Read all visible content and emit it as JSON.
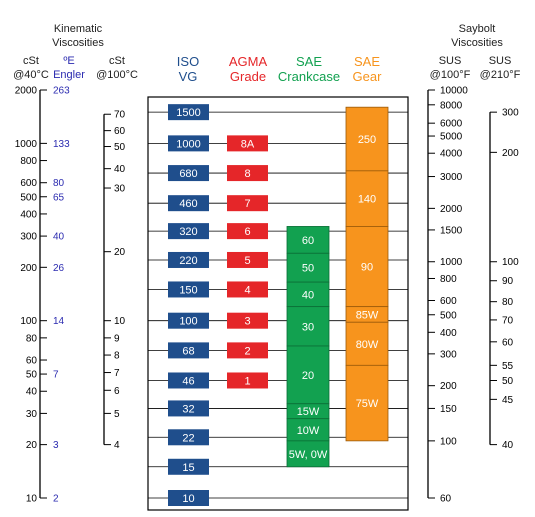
{
  "headers": {
    "kinematic_title": [
      "Kinematic",
      "Viscosities"
    ],
    "saybolt_title": [
      "Saybolt",
      "Viscosities"
    ],
    "cst40": [
      "cSt",
      "@40°C"
    ],
    "engler": [
      "ºE",
      "Engler"
    ],
    "cst100": [
      "cSt",
      "@100°C"
    ],
    "iso": [
      "ISO",
      "VG"
    ],
    "agma": [
      "AGMA",
      "Grade"
    ],
    "sae_crankcase": [
      "SAE",
      "Crankcase"
    ],
    "sae_gear": [
      "SAE",
      "Gear"
    ],
    "sus100": [
      "SUS",
      "@100°F"
    ],
    "sus210": [
      "SUS",
      "@210°F"
    ]
  },
  "colors": {
    "iso": "#1f4e8c",
    "agma": "#e52629",
    "crankcase": "#12a150",
    "gear": "#f7941d",
    "iso_header": "#1f4e8c",
    "agma_header": "#e52629",
    "crankcase_header": "#12a150",
    "gear_header": "#f7941d",
    "engler_text": "#2b2bb0"
  },
  "chart_data": {
    "type": "viscosity-comparison",
    "base_scale": "cSt @40°C (log)",
    "cst40_ticks": [
      {
        "v": 2000,
        "label": "2000"
      },
      {
        "v": 1000,
        "label": "1000"
      },
      {
        "v": 800,
        "label": "800"
      },
      {
        "v": 600,
        "label": "600"
      },
      {
        "v": 500,
        "label": "500"
      },
      {
        "v": 400,
        "label": "400"
      },
      {
        "v": 300,
        "label": "300"
      },
      {
        "v": 200,
        "label": "200"
      },
      {
        "v": 100,
        "label": "100"
      },
      {
        "v": 80,
        "label": "80"
      },
      {
        "v": 60,
        "label": "60"
      },
      {
        "v": 50,
        "label": "50"
      },
      {
        "v": 40,
        "label": "40"
      },
      {
        "v": 30,
        "label": "30"
      },
      {
        "v": 20,
        "label": "20"
      },
      {
        "v": 10,
        "label": "10"
      }
    ],
    "engler_ticks": [
      {
        "v": 2000,
        "label": "263"
      },
      {
        "v": 1000,
        "label": "133"
      },
      {
        "v": 600,
        "label": "80"
      },
      {
        "v": 500,
        "label": "65"
      },
      {
        "v": 300,
        "label": "40"
      },
      {
        "v": 200,
        "label": "26"
      },
      {
        "v": 100,
        "label": "14"
      },
      {
        "v": 50,
        "label": "7"
      },
      {
        "v": 20,
        "label": "3"
      },
      {
        "v": 10,
        "label": "2"
      }
    ],
    "cst100_ticks": [
      {
        "at": 1460,
        "label": "70"
      },
      {
        "at": 1180,
        "label": "60"
      },
      {
        "at": 960,
        "label": "50"
      },
      {
        "at": 720,
        "label": "40"
      },
      {
        "at": 560,
        "label": "30"
      },
      {
        "at": 245,
        "label": "20"
      },
      {
        "at": 100,
        "label": "10"
      },
      {
        "at": 80,
        "label": "9"
      },
      {
        "at": 64,
        "label": "8"
      },
      {
        "at": 51,
        "label": "7"
      },
      {
        "at": 40.5,
        "label": "6"
      },
      {
        "at": 30,
        "label": "5"
      },
      {
        "at": 20,
        "label": "4"
      }
    ],
    "sus100_ticks": [
      {
        "at": 2000,
        "label": "10000"
      },
      {
        "at": 1650,
        "label": "8000"
      },
      {
        "at": 1300,
        "label": "6000"
      },
      {
        "at": 1100,
        "label": "5000"
      },
      {
        "at": 880,
        "label": "4000"
      },
      {
        "at": 650,
        "label": "3000"
      },
      {
        "at": 430,
        "label": "2000"
      },
      {
        "at": 325,
        "label": "1500"
      },
      {
        "at": 215,
        "label": "1000"
      },
      {
        "at": 173,
        "label": "800"
      },
      {
        "at": 130,
        "label": "600"
      },
      {
        "at": 108,
        "label": "500"
      },
      {
        "at": 86,
        "label": "400"
      },
      {
        "at": 65,
        "label": "300"
      },
      {
        "at": 43,
        "label": "200"
      },
      {
        "at": 32,
        "label": "150"
      },
      {
        "at": 21,
        "label": "100"
      },
      {
        "at": 10,
        "label": "60"
      }
    ],
    "sus210_ticks": [
      {
        "at": 1500,
        "label": "300"
      },
      {
        "at": 890,
        "label": "200"
      },
      {
        "at": 215,
        "label": "100"
      },
      {
        "at": 168,
        "label": "90"
      },
      {
        "at": 128,
        "label": "80"
      },
      {
        "at": 101,
        "label": "70"
      },
      {
        "at": 76,
        "label": "60"
      },
      {
        "at": 56,
        "label": "55"
      },
      {
        "at": 46,
        "label": "50"
      },
      {
        "at": 36,
        "label": "45"
      },
      {
        "at": 20,
        "label": "40"
      }
    ],
    "iso_vg": [
      {
        "label": "1500",
        "v": 1500
      },
      {
        "label": "1000",
        "v": 1000
      },
      {
        "label": "680",
        "v": 680
      },
      {
        "label": "460",
        "v": 460
      },
      {
        "label": "320",
        "v": 320
      },
      {
        "label": "220",
        "v": 220
      },
      {
        "label": "150",
        "v": 150
      },
      {
        "label": "100",
        "v": 100
      },
      {
        "label": "68",
        "v": 68
      },
      {
        "label": "46",
        "v": 46
      },
      {
        "label": "32",
        "v": 32
      },
      {
        "label": "22",
        "v": 22
      },
      {
        "label": "15",
        "v": 15
      },
      {
        "label": "10",
        "v": 10
      }
    ],
    "agma_grades": [
      {
        "label": "8A",
        "v": 1000
      },
      {
        "label": "8",
        "v": 680
      },
      {
        "label": "7",
        "v": 460
      },
      {
        "label": "6",
        "v": 320
      },
      {
        "label": "5",
        "v": 220
      },
      {
        "label": "4",
        "v": 150
      },
      {
        "label": "3",
        "v": 100
      },
      {
        "label": "2",
        "v": 68
      },
      {
        "label": "1",
        "v": 46
      }
    ],
    "sae_crankcase": [
      {
        "label": "60",
        "from": 240,
        "to": 340
      },
      {
        "label": "50",
        "from": 165,
        "to": 240
      },
      {
        "label": "40",
        "from": 120,
        "to": 165
      },
      {
        "label": "30",
        "from": 72,
        "to": 120
      },
      {
        "label": "20",
        "from": 34,
        "to": 72
      },
      {
        "label": "15W",
        "from": 28,
        "to": 34
      },
      {
        "label": "10W",
        "from": 21,
        "to": 28
      },
      {
        "label": "5W, 0W",
        "from": 15,
        "to": 21
      }
    ],
    "sae_gear": [
      {
        "label": "250",
        "from": 700,
        "to": 1600
      },
      {
        "label": "140",
        "from": 340,
        "to": 700
      },
      {
        "label": "90",
        "from": 120,
        "to": 340
      },
      {
        "label": "85W",
        "from": 98,
        "to": 120
      },
      {
        "label": "80W",
        "from": 56,
        "to": 98
      },
      {
        "label": "75W",
        "from": 21,
        "to": 56
      }
    ]
  }
}
